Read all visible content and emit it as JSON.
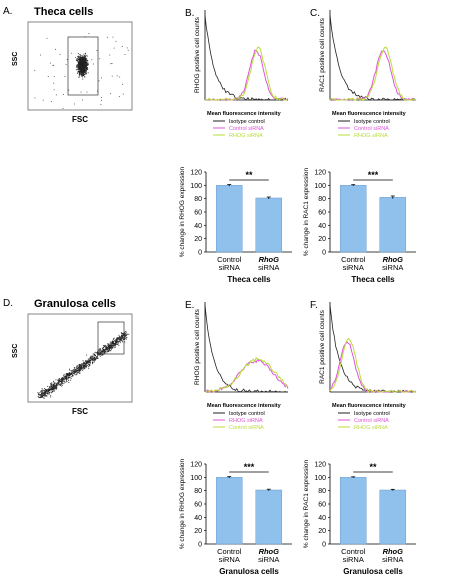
{
  "rows": [
    {
      "cell_label": "Theca cells",
      "scatter": {
        "panel": "A.",
        "ylabel": "SSC",
        "xlabel": "FSC"
      },
      "flow": [
        {
          "panel": "B.",
          "ylabel": "RHOG positive cell counts",
          "xlabel": "Mean fluorescence intensity",
          "legend": [
            "Isotype control",
            "Control siRNA",
            "RHOG siRNA"
          ],
          "colors": [
            "#222222",
            "#e055d5",
            "#b8dc3a"
          ]
        },
        {
          "panel": "C.",
          "ylabel": "RAC1 positive cell counts",
          "xlabel": "Mean fluorescence intensity",
          "legend": [
            "Isotype control",
            "Control siRNA",
            "RHOG siRNA"
          ],
          "colors": [
            "#222222",
            "#e055d5",
            "#b8dc3a"
          ]
        }
      ],
      "bars": [
        {
          "ylabel": "% change in RHOG expression",
          "categories": [
            "Control siRNA",
            "RhoG siRNA"
          ],
          "values": [
            100,
            81
          ],
          "errors": [
            1.2,
            1.5
          ],
          "sig": "**",
          "ylim": [
            0,
            120
          ],
          "yticks": [
            "0",
            "20",
            "40",
            "60",
            "80",
            "100",
            "120"
          ],
          "xlabel": "Theca cells"
        },
        {
          "ylabel": "% change in RAC1 expression",
          "categories": [
            "Control siRNA",
            "RhoG siRNA"
          ],
          "values": [
            100,
            82
          ],
          "errors": [
            1.0,
            2.0
          ],
          "sig": "***",
          "ylim": [
            0,
            120
          ],
          "yticks": [
            "0",
            "20",
            "40",
            "60",
            "80",
            "100",
            "120"
          ],
          "xlabel": "Theca cells"
        }
      ]
    },
    {
      "cell_label": "Granulosa cells",
      "scatter": {
        "panel": "D.",
        "ylabel": "SSC",
        "xlabel": "FSC"
      },
      "flow": [
        {
          "panel": "E.",
          "ylabel": "RHOG positive cell counts",
          "xlabel": "Mean fluorescence intensity",
          "legend": [
            "Isotype control",
            "RHOG siRNA",
            "Control siRNA"
          ],
          "colors": [
            "#222222",
            "#e055d5",
            "#b8dc3a"
          ]
        },
        {
          "panel": "F.",
          "ylabel": "RAC1 positive cell counts",
          "xlabel": "Mean fluorescence intensity",
          "legend": [
            "Isotype control",
            "Control siRNA",
            "RHOG siRNA"
          ],
          "colors": [
            "#222222",
            "#e055d5",
            "#b8dc3a"
          ]
        }
      ],
      "bars": [
        {
          "ylabel": "% change in RHOG expression",
          "categories": [
            "Control siRNA",
            "RhoG siRNA"
          ],
          "values": [
            100,
            81
          ],
          "errors": [
            1.0,
            1.2
          ],
          "sig": "***",
          "ylim": [
            0,
            120
          ],
          "yticks": [
            "0",
            "20",
            "40",
            "60",
            "80",
            "100",
            "120"
          ],
          "xlabel": "Granulosa cells"
        },
        {
          "ylabel": "% change in RAC1 expression",
          "categories": [
            "Control siRNA",
            "RhoG siRNA"
          ],
          "values": [
            100,
            81
          ],
          "errors": [
            0.8,
            1.0
          ],
          "sig": "**",
          "ylim": [
            0,
            120
          ],
          "yticks": [
            "0",
            "20",
            "40",
            "60",
            "80",
            "100",
            "120"
          ],
          "xlabel": "Granulosa cells"
        }
      ]
    }
  ],
  "chart_data": [
    {
      "type": "bar",
      "categories": [
        "Control siRNA",
        "RhoG siRNA"
      ],
      "values": [
        100,
        81
      ],
      "ylabel": "% change in RHOG expression",
      "xlabel": "Theca cells",
      "ylim": [
        0,
        120
      ]
    },
    {
      "type": "bar",
      "categories": [
        "Control siRNA",
        "RhoG siRNA"
      ],
      "values": [
        100,
        82
      ],
      "ylabel": "% change in RAC1 expression",
      "xlabel": "Theca cells",
      "ylim": [
        0,
        120
      ]
    },
    {
      "type": "bar",
      "categories": [
        "Control siRNA",
        "RhoG siRNA"
      ],
      "values": [
        100,
        81
      ],
      "ylabel": "% change in RHOG expression",
      "xlabel": "Granulosa cells",
      "ylim": [
        0,
        120
      ]
    },
    {
      "type": "bar",
      "categories": [
        "Control siRNA",
        "RhoG siRNA"
      ],
      "values": [
        100,
        81
      ],
      "ylabel": "% change in RAC1 expression",
      "xlabel": "Granulosa cells",
      "ylim": [
        0,
        120
      ]
    }
  ]
}
